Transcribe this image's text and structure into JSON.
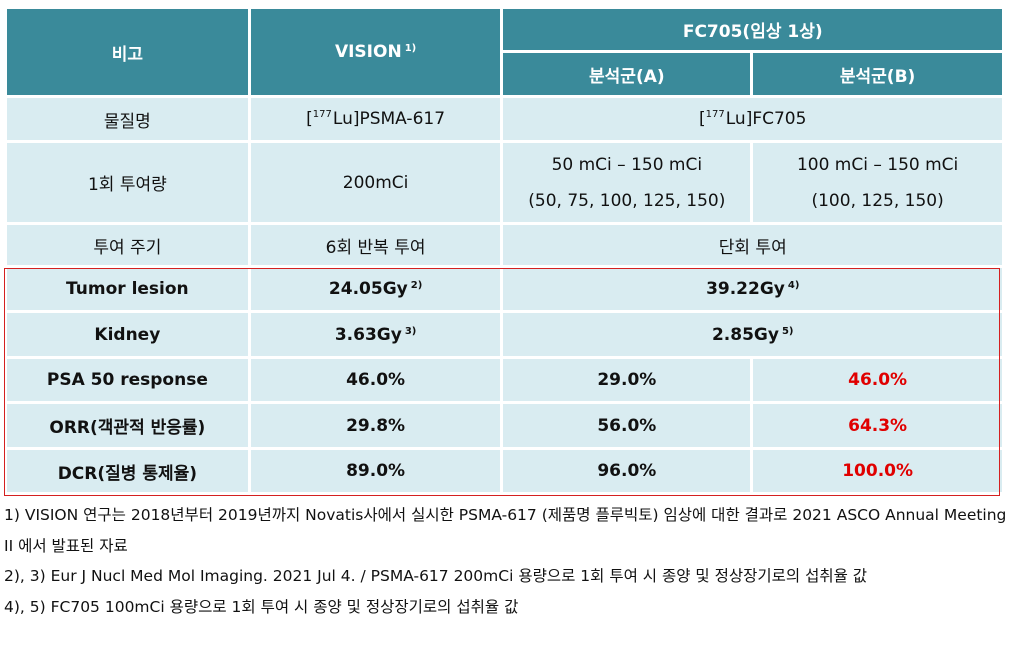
{
  "header": {
    "col1": "비고",
    "col2": "VISION",
    "col2_sup": "1)",
    "col3": "FC705(임상 1상)",
    "group_a": "분석군(A)",
    "group_b": "분석군(B)"
  },
  "rows": {
    "material": {
      "label": "물질명",
      "vision_sup": "177",
      "vision": "Lu]PSMA-617",
      "fc705_sup": "177",
      "fc705": "Lu]FC705",
      "bracket": "["
    },
    "dose": {
      "label": "1회 투여량",
      "vision": "200mCi",
      "a_line1": "50 mCi – 150 mCi",
      "a_line2": "(50, 75, 100, 125, 150)",
      "b_line1": "100 mCi – 150 mCi",
      "b_line2": "(100, 125, 150)"
    },
    "cycle": {
      "label": "투여 주기",
      "vision": "6회 반복 투여",
      "fc705": "단회 투여"
    },
    "tumor": {
      "label": "Tumor lesion",
      "vision": "24.05Gy",
      "vision_sup": "2)",
      "fc705": "39.22Gy",
      "fc705_sup": "4)"
    },
    "kidney": {
      "label": "Kidney",
      "vision": "3.63Gy",
      "vision_sup": "3)",
      "fc705": "2.85Gy",
      "fc705_sup": "5)"
    },
    "psa": {
      "label": "PSA 50 response",
      "vision": "46.0%",
      "a": "29.0%",
      "b": "46.0%"
    },
    "orr": {
      "label": "ORR(객관적 반응률)",
      "vision": "29.8%",
      "a": "56.0%",
      "b": "64.3%"
    },
    "dcr": {
      "label": "DCR(질병 통제율)",
      "vision": "89.0%",
      "a": "96.0%",
      "b": "100.0%"
    }
  },
  "notes": [
    "1) VISION 연구는 2018년부터 2019년까지 Novatis사에서 실시한 PSMA-617 (제품명 플루빅토) 임상에 대한 결과로 2021 ASCO Annual Meeting II 에서 발표된 자료",
    "2), 3) Eur J Nucl Med Mol Imaging. 2021 Jul 4. / PSMA-617 200mCi 용량으로 1회 투여 시 종양 및 정상장기로의 섭취율 값",
    "4), 5) FC705 100mCi 용량으로 1회 투여 시 종양 및 정상장기로의 섭취율 값"
  ],
  "colors": {
    "header_bg": "#3a8a9a",
    "cell_bg": "#d9ecf1",
    "highlight_red": "#e00000",
    "box_border": "#d42020"
  }
}
